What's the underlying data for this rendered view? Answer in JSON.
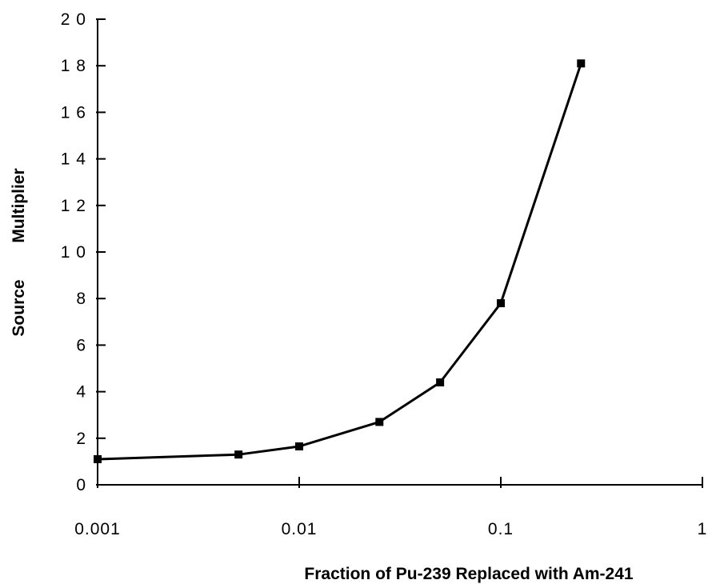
{
  "chart_data": {
    "type": "line",
    "title": "",
    "xlabel": "Fraction of Pu-239 Replaced with Am-241",
    "ylabel_parts": [
      "Source",
      "Multiplier"
    ],
    "x_scale": "log",
    "xlim": [
      0.001,
      1
    ],
    "ylim": [
      0,
      20
    ],
    "x_ticks": [
      0.001,
      0.01,
      0.1,
      1
    ],
    "x_tick_labels": [
      "0.001",
      "0.01",
      "0.1",
      "1"
    ],
    "y_ticks": [
      0,
      2,
      4,
      6,
      8,
      10,
      12,
      14,
      16,
      18,
      20
    ],
    "y_tick_labels": [
      "0",
      "2",
      "4",
      "6",
      "8",
      "1 0",
      "1 2",
      "1 4",
      "1 6",
      "1 8",
      "2 0"
    ],
    "grid": false,
    "legend": "none",
    "series": [
      {
        "x": [
          0.001,
          0.005,
          0.01,
          0.025,
          0.05,
          0.1,
          0.25
        ],
        "y": [
          1.1,
          1.3,
          1.65,
          2.7,
          4.4,
          7.8,
          18.1
        ]
      }
    ],
    "colors": {
      "line": "#000000",
      "marker": "#000000"
    }
  }
}
